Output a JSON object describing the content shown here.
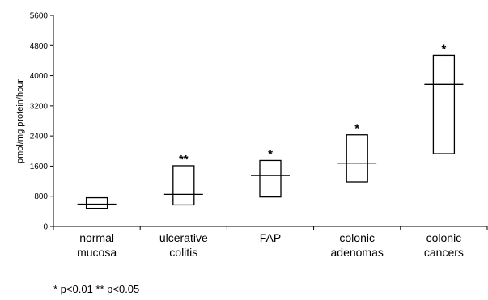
{
  "chart_data": {
    "type": "box",
    "ylabel": "pmol/mg protein/hour",
    "ylim": [
      0,
      5600
    ],
    "yticks": [
      0,
      800,
      1600,
      2400,
      3200,
      4000,
      4800,
      5600
    ],
    "ytick_labels": [
      "0",
      "800",
      "1600",
      "2400",
      "3200",
      "4000",
      "4800",
      "5600"
    ],
    "categories": [
      {
        "lines": [
          "normal",
          "mucosa"
        ],
        "low": 480,
        "high": 760,
        "median": 590,
        "sig": ""
      },
      {
        "lines": [
          "ulcerative",
          "colitis"
        ],
        "low": 570,
        "high": 1610,
        "median": 850,
        "sig": "**"
      },
      {
        "lines": [
          "FAP"
        ],
        "low": 780,
        "high": 1750,
        "median": 1350,
        "sig": "*"
      },
      {
        "lines": [
          "colonic",
          "adenomas"
        ],
        "low": 1180,
        "high": 2430,
        "median": 1680,
        "sig": "*"
      },
      {
        "lines": [
          "colonic",
          "cancers"
        ],
        "low": 1930,
        "high": 4540,
        "median": 3770,
        "sig": "*"
      }
    ]
  },
  "footnote": "* p<0.01    ** p<0.05"
}
